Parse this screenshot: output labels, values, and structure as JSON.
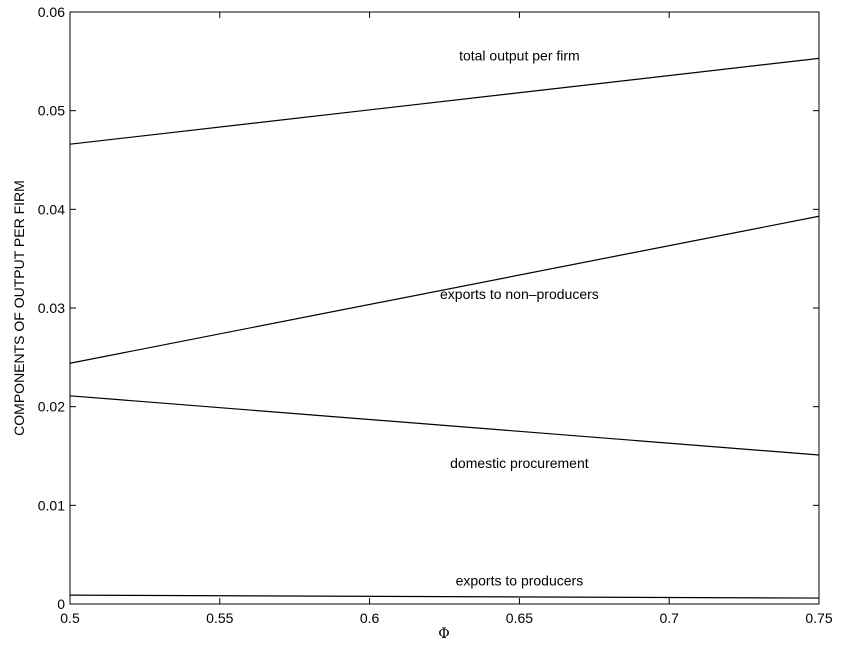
{
  "chart_data": {
    "type": "line",
    "xlabel": "Φ",
    "ylabel": "COMPONENTS OF OUTPUT PER FIRM",
    "xlim": [
      0.5,
      0.75
    ],
    "ylim": [
      0,
      0.06
    ],
    "x_ticks": [
      "0.5",
      "0.55",
      "0.6",
      "0.65",
      "0.7",
      "0.75"
    ],
    "y_ticks": [
      "0",
      "0.01",
      "0.02",
      "0.03",
      "0.04",
      "0.05",
      "0.06"
    ],
    "grid": false,
    "legend": "none",
    "series": [
      {
        "name": "total output per firm",
        "x": [
          0.5,
          0.75
        ],
        "y": [
          0.0466,
          0.0553
        ],
        "label_at": [
          0.65,
          0.0556
        ]
      },
      {
        "name": "exports to non–producers",
        "x": [
          0.5,
          0.75
        ],
        "y": [
          0.0244,
          0.0393
        ],
        "label_at": [
          0.65,
          0.0314
        ]
      },
      {
        "name": "domestic procurement",
        "x": [
          0.5,
          0.75
        ],
        "y": [
          0.0211,
          0.0151
        ],
        "label_at": [
          0.65,
          0.0143
        ]
      },
      {
        "name": "exports to producers",
        "x": [
          0.5,
          0.75
        ],
        "y": [
          0.0009,
          0.0006
        ],
        "label_at": [
          0.65,
          0.0024
        ]
      }
    ]
  }
}
